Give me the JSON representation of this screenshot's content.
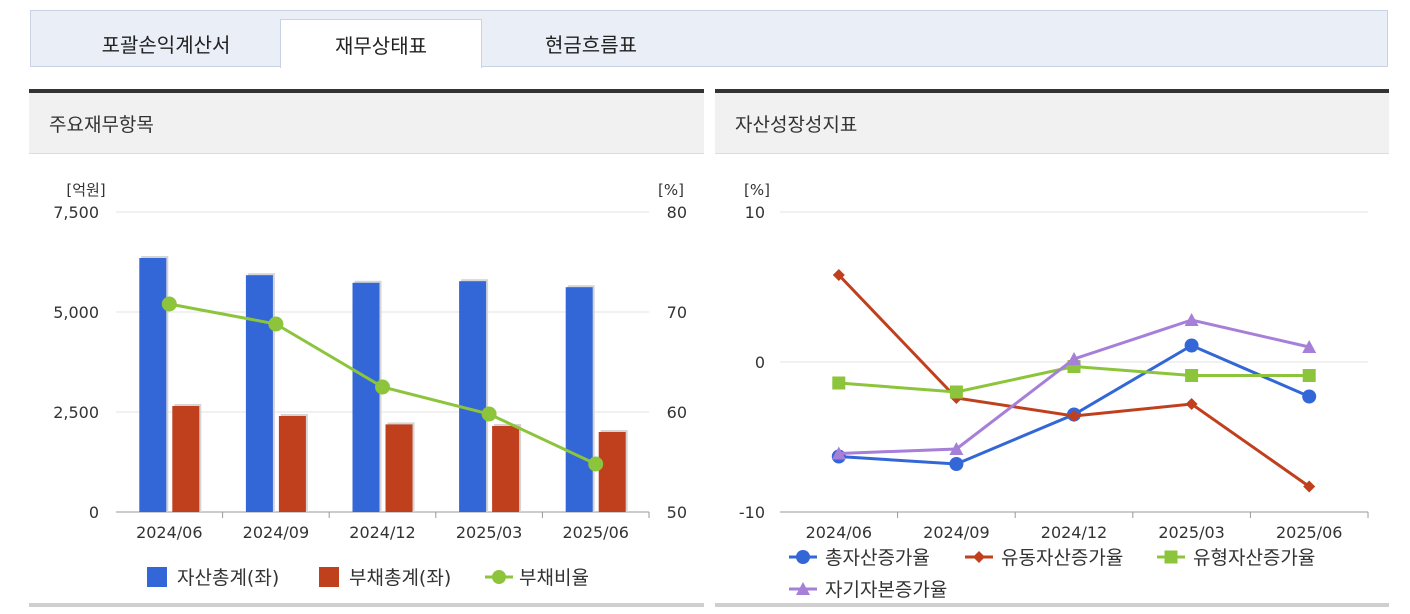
{
  "tabs": [
    {
      "label": "포괄손익계산서",
      "active": false
    },
    {
      "label": "재무상태표",
      "active": true
    },
    {
      "label": "현금흐름표",
      "active": false
    }
  ],
  "left_panel": {
    "title": "주요재무항목"
  },
  "right_panel": {
    "title": "자산성장성지표"
  },
  "chart_data": [
    {
      "type": "bar",
      "categories": [
        "2024/06",
        "2024/09",
        "2024/12",
        "2025/03",
        "2025/06"
      ],
      "y_left_unit": "[억원]",
      "y_right_unit": "[%]",
      "ylim_left": [
        0,
        7500
      ],
      "ylim_right": [
        50,
        80
      ],
      "yticks_left": [
        "7,500",
        "5,000",
        "2,500",
        "0"
      ],
      "yticks_right": [
        "80",
        "70",
        "60",
        "50"
      ],
      "series": [
        {
          "name": "자산총계(좌)",
          "kind": "bar",
          "axis": "left",
          "color": "#3366d6",
          "values": [
            6350,
            5920,
            5730,
            5770,
            5620
          ]
        },
        {
          "name": "부채총계(좌)",
          "kind": "bar",
          "axis": "left",
          "color": "#c0401e",
          "values": [
            2650,
            2400,
            2190,
            2150,
            2000
          ]
        },
        {
          "name": "부채비율",
          "kind": "line",
          "axis": "right",
          "color": "#8cc43c",
          "values": [
            70.8,
            68.8,
            62.5,
            59.8,
            54.8
          ]
        }
      ],
      "legend": "bottom"
    },
    {
      "type": "line",
      "categories": [
        "2024/06",
        "2024/09",
        "2024/12",
        "2025/03",
        "2025/06"
      ],
      "y_unit": "[%]",
      "ylim": [
        -10,
        10
      ],
      "yticks": [
        "10",
        "0",
        "-10"
      ],
      "series": [
        {
          "name": "총자산증가율",
          "marker": "circle",
          "color": "#3366d6",
          "values": [
            -6.3,
            -6.8,
            -3.5,
            1.1,
            -2.3
          ]
        },
        {
          "name": "유동자산증가율",
          "marker": "diamond",
          "color": "#c0401e",
          "values": [
            5.8,
            -2.4,
            -3.6,
            -2.8,
            -8.3
          ]
        },
        {
          "name": "유형자산증가율",
          "marker": "square",
          "color": "#8cc43c",
          "values": [
            -1.4,
            -2.0,
            -0.3,
            -0.9,
            -0.9
          ]
        },
        {
          "name": "자기자본증가율",
          "marker": "triangle",
          "color": "#a67fd8",
          "values": [
            -6.1,
            -5.8,
            0.2,
            2.8,
            1.0
          ]
        }
      ],
      "legend": "bottom"
    }
  ]
}
